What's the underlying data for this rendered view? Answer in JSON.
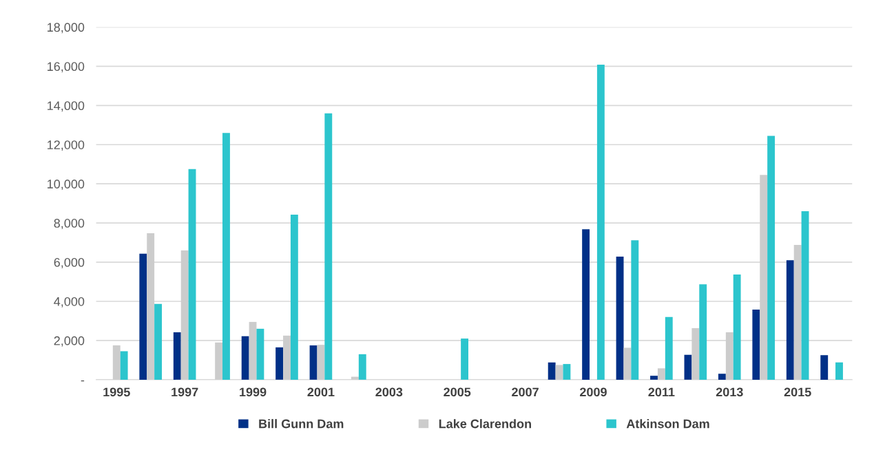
{
  "chart_data": {
    "type": "bar",
    "categories": [
      "1995",
      null,
      "1997",
      null,
      "1999",
      null,
      "2001",
      null,
      "2003",
      null,
      "2005",
      null,
      "2007",
      null,
      "2009",
      null,
      "2011",
      null,
      "2013",
      null,
      "2015",
      null
    ],
    "series": [
      {
        "name": "Bill Gunn Dam",
        "color": "#003087",
        "values": [
          0,
          6430,
          2420,
          0,
          2220,
          1650,
          1750,
          0,
          0,
          0,
          0,
          0,
          0,
          880,
          7680,
          6280,
          200,
          1270,
          300,
          3580,
          6100,
          1250
        ]
      },
      {
        "name": "Lake Clarendon",
        "color": "#cccccc",
        "values": [
          1750,
          7480,
          6600,
          1900,
          2950,
          2250,
          1780,
          150,
          0,
          0,
          0,
          0,
          0,
          750,
          0,
          1630,
          580,
          2630,
          2420,
          10450,
          6880,
          0
        ]
      },
      {
        "name": "Atkinson Dam",
        "color": "#2cc5cd",
        "values": [
          1450,
          3870,
          10750,
          12600,
          2600,
          8430,
          13600,
          1300,
          0,
          0,
          2100,
          0,
          0,
          800,
          16080,
          7120,
          3200,
          4870,
          5370,
          12450,
          8600,
          880
        ]
      }
    ],
    "ylim": [
      0,
      18000
    ],
    "yticks": [
      {
        "value": 0,
        "label": "-"
      },
      {
        "value": 2000,
        "label": "2,000"
      },
      {
        "value": 4000,
        "label": "4,000"
      },
      {
        "value": 6000,
        "label": "6,000"
      },
      {
        "value": 8000,
        "label": "8,000"
      },
      {
        "value": 10000,
        "label": "10,000"
      },
      {
        "value": 12000,
        "label": "12,000"
      },
      {
        "value": 14000,
        "label": "14,000"
      },
      {
        "value": 16000,
        "label": "16,000"
      },
      {
        "value": 18000,
        "label": "18,000"
      }
    ],
    "grid": "y",
    "legend": "bottom"
  }
}
